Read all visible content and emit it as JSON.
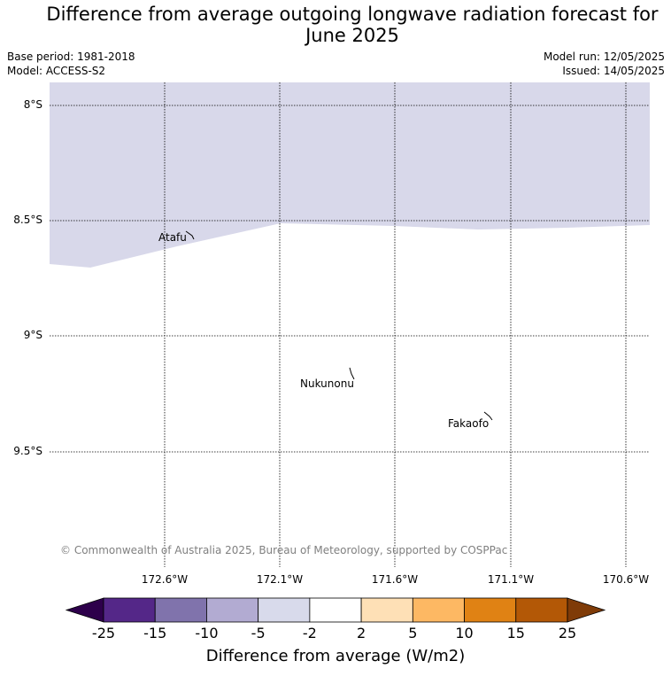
{
  "title": "Difference from average outgoing longwave radiation forecast for June 2025",
  "meta_left": {
    "base_period": "Base period: 1981-2018",
    "model": "Model: ACCESS-S2"
  },
  "meta_right": {
    "model_run": "Model run: 12/05/2025",
    "issued": "Issued: 14/05/2025"
  },
  "lat_labels": [
    "8°S",
    "8.5°S",
    "9°S",
    "9.5°S"
  ],
  "lon_labels": [
    "172.6°W",
    "172.1°W",
    "171.6°W",
    "171.1°W",
    "170.6°W"
  ],
  "places": [
    "Atafu",
    "Nukunonu",
    "Fakaofo"
  ],
  "copyright": "© Commonwealth of Australia 2025, Bureau of Meteorology, supported by COSPPac",
  "shading": {
    "region": "northern part of map",
    "category": "-5 to -2",
    "color": "#d8d8ea"
  },
  "colorbar": {
    "ticks": [
      "-25",
      "-15",
      "-10",
      "-5",
      "-2",
      "2",
      "5",
      "10",
      "15",
      "25"
    ],
    "colors": [
      "#2d004b",
      "#542788",
      "#8073ac",
      "#b2abd2",
      "#d8daeb",
      "#ffffff",
      "#fee0b6",
      "#fdb863",
      "#e08214",
      "#b35806",
      "#7f3b08"
    ],
    "label": "Difference from average (W/m2)"
  }
}
